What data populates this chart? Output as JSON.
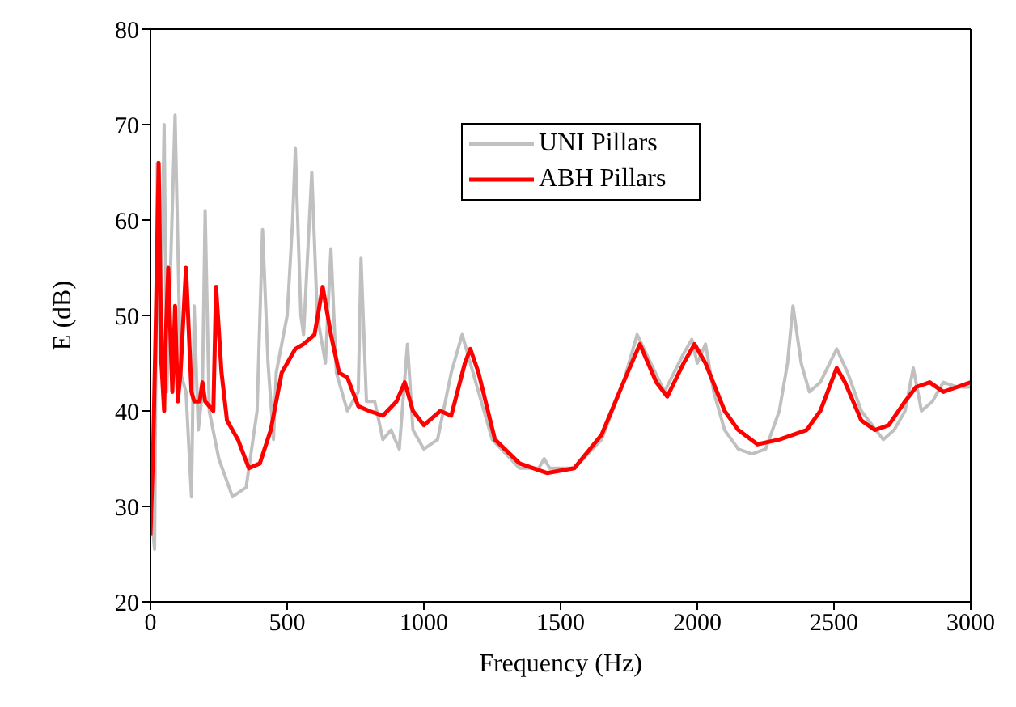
{
  "chart_data": {
    "type": "line",
    "xlabel": "Frequency (Hz)",
    "ylabel": "E (dB)",
    "xlim": [
      0,
      3000
    ],
    "ylim": [
      20,
      80
    ],
    "xticks": [
      0,
      500,
      1000,
      1500,
      2000,
      2500,
      3000
    ],
    "yticks": [
      20,
      30,
      40,
      50,
      60,
      70,
      80
    ],
    "grid": false,
    "legend": "top right",
    "marker": "none",
    "line_style": "solid",
    "series": [
      {
        "name": "UNI Pillars",
        "color": "#c0c0c0",
        "x": [
          0,
          15,
          25,
          35,
          50,
          60,
          90,
          110,
          130,
          150,
          160,
          175,
          190,
          200,
          215,
          250,
          300,
          350,
          390,
          410,
          430,
          450,
          460,
          500,
          520,
          530,
          550,
          560,
          590,
          610,
          640,
          660,
          680,
          720,
          760,
          770,
          790,
          820,
          850,
          880,
          910,
          940,
          960,
          1000,
          1050,
          1100,
          1140,
          1200,
          1250,
          1350,
          1420,
          1440,
          1460,
          1550,
          1650,
          1730,
          1780,
          1880,
          1950,
          1980,
          2000,
          2030,
          2060,
          2100,
          2150,
          2200,
          2250,
          2300,
          2330,
          2350,
          2380,
          2410,
          2450,
          2510,
          2550,
          2600,
          2680,
          2720,
          2760,
          2790,
          2820,
          2860,
          2900,
          2950,
          3000
        ],
        "values": [
          30,
          25.5,
          66,
          45,
          70,
          42,
          71,
          44,
          42,
          31,
          51,
          38,
          42,
          61,
          40,
          35,
          31,
          32,
          40,
          59,
          45,
          37,
          44,
          50,
          60,
          67.5,
          50,
          48,
          65,
          50,
          45,
          57,
          44,
          40,
          42,
          56,
          41,
          41,
          37,
          38,
          36,
          47,
          38,
          36,
          37,
          44,
          48,
          42,
          37,
          34,
          34,
          35,
          34,
          34,
          37,
          43,
          48,
          42,
          46,
          47.5,
          45,
          47,
          42,
          38,
          36,
          35.5,
          36,
          40,
          45,
          51,
          45,
          42,
          43,
          46.5,
          44,
          40,
          37,
          38,
          40,
          44.5,
          40,
          41,
          43,
          42.5,
          42.5
        ]
      },
      {
        "name": "ABH Pillars",
        "color": "#ff0000",
        "x": [
          0,
          10,
          20,
          30,
          40,
          50,
          55,
          65,
          80,
          90,
          100,
          110,
          130,
          150,
          160,
          180,
          190,
          200,
          230,
          240,
          260,
          280,
          320,
          360,
          400,
          440,
          480,
          500,
          530,
          560,
          600,
          630,
          660,
          690,
          720,
          760,
          800,
          850,
          900,
          930,
          960,
          1000,
          1060,
          1100,
          1150,
          1170,
          1200,
          1260,
          1350,
          1450,
          1550,
          1650,
          1730,
          1790,
          1850,
          1890,
          1950,
          1990,
          2030,
          2100,
          2150,
          2220,
          2300,
          2400,
          2450,
          2510,
          2540,
          2600,
          2650,
          2700,
          2760,
          2800,
          2850,
          2900,
          2950,
          3000
        ],
        "values": [
          27,
          36,
          50,
          66,
          45,
          40,
          47,
          55,
          42,
          51,
          41,
          44,
          55,
          42,
          41,
          41,
          43,
          41,
          40,
          53,
          44,
          39,
          37,
          34,
          34.5,
          38,
          44,
          45,
          46.5,
          47,
          48,
          53,
          48,
          44,
          43.5,
          40.5,
          40,
          39.5,
          41,
          43,
          40,
          38.5,
          40,
          39.5,
          45,
          46.5,
          44,
          37,
          34.5,
          33.5,
          34,
          37.5,
          43,
          47,
          43,
          41.5,
          45,
          47,
          45,
          40,
          38,
          36.5,
          37,
          38,
          40,
          44.5,
          43,
          39,
          38,
          38.5,
          41,
          42.5,
          43,
          42,
          42.5,
          43
        ]
      }
    ]
  }
}
